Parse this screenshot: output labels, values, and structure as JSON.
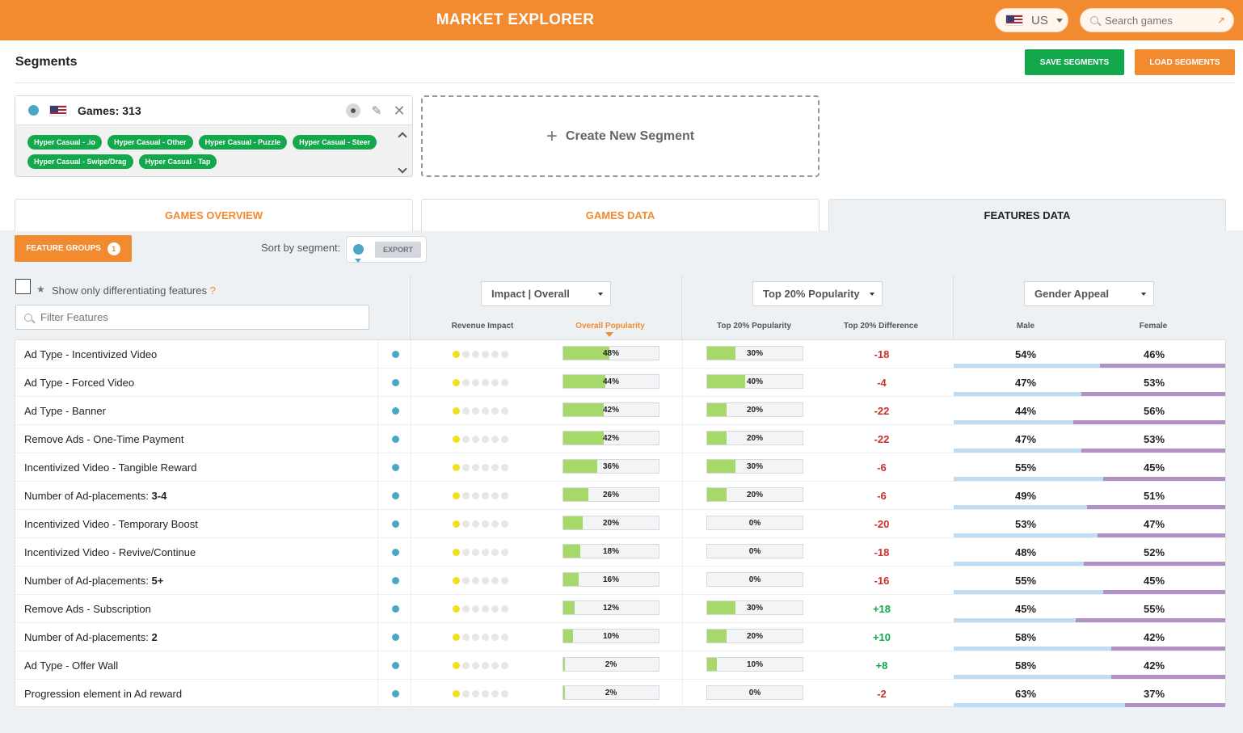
{
  "header": {
    "title": "MARKET EXPLORER",
    "country": "US",
    "search_placeholder": "Search games"
  },
  "segments": {
    "title": "Segments",
    "save_label": "SAVE SEGMENTS",
    "load_label": "LOAD SEGMENTS",
    "card": {
      "games_count": "Games: 313",
      "tags": [
        "Hyper Casual - .io",
        "Hyper Casual - Other",
        "Hyper Casual - Puzzle",
        "Hyper Casual - Steer",
        "Hyper Casual - Swipe/Drag",
        "Hyper Casual - Tap"
      ]
    },
    "create_label": "Create New Segment"
  },
  "tabs": [
    "GAMES OVERVIEW",
    "GAMES DATA",
    "FEATURES DATA"
  ],
  "toolbar": {
    "feature_groups_label": "FEATURE GROUPS",
    "feature_groups_count": "1",
    "sort_label": "Sort by segment:",
    "export_label": "EXPORT",
    "diff_label": "Show only differentiating features",
    "diff_help": "?",
    "filter_placeholder": "Filter Features"
  },
  "columns": {
    "group1": "Impact | Overall",
    "group2": "Top 20% Popularity",
    "group3": "Gender Appeal",
    "revenue_impact": "Revenue Impact",
    "overall_popularity": "Overall Popularity",
    "top20_popularity": "Top 20% Popularity",
    "top20_difference": "Top 20% Difference",
    "male": "Male",
    "female": "Female"
  },
  "colors": {
    "accent": "#f28a30",
    "green": "#12a84b",
    "segment_dot": "#4aa8c6",
    "bar_fill": "#a6d96a",
    "negative": "#c9302c"
  },
  "rows": [
    {
      "name": "Ad Type - Incentivized Video",
      "bold": "",
      "impact": 1,
      "overall": 48,
      "overall_label": "48%",
      "top20": 30,
      "top20_label": "30%",
      "diff": "-18",
      "male": "54%",
      "female": "46%",
      "male_frac": 0.54
    },
    {
      "name": "Ad Type - Forced Video",
      "bold": "",
      "impact": 1,
      "overall": 44,
      "overall_label": "44%",
      "top20": 40,
      "top20_label": "40%",
      "diff": "-4",
      "male": "47%",
      "female": "53%",
      "male_frac": 0.47
    },
    {
      "name": "Ad Type - Banner",
      "bold": "",
      "impact": 1,
      "overall": 42,
      "overall_label": "42%",
      "top20": 20,
      "top20_label": "20%",
      "diff": "-22",
      "male": "44%",
      "female": "56%",
      "male_frac": 0.44
    },
    {
      "name": "Remove Ads - One-Time Payment",
      "bold": "",
      "impact": 1,
      "overall": 42,
      "overall_label": "42%",
      "top20": 20,
      "top20_label": "20%",
      "diff": "-22",
      "male": "47%",
      "female": "53%",
      "male_frac": 0.47
    },
    {
      "name": "Incentivized Video - Tangible Reward",
      "bold": "",
      "impact": 1,
      "overall": 36,
      "overall_label": "36%",
      "top20": 30,
      "top20_label": "30%",
      "diff": "-6",
      "male": "55%",
      "female": "45%",
      "male_frac": 0.55
    },
    {
      "name": "Number of Ad-placements: ",
      "bold": "3-4",
      "impact": 1,
      "overall": 26,
      "overall_label": "26%",
      "top20": 20,
      "top20_label": "20%",
      "diff": "-6",
      "male": "49%",
      "female": "51%",
      "male_frac": 0.49
    },
    {
      "name": "Incentivized Video - Temporary Boost",
      "bold": "",
      "impact": 1,
      "overall": 20,
      "overall_label": "20%",
      "top20": 0,
      "top20_label": "0%",
      "diff": "-20",
      "male": "53%",
      "female": "47%",
      "male_frac": 0.53
    },
    {
      "name": "Incentivized Video - Revive/Continue",
      "bold": "",
      "impact": 1,
      "overall": 18,
      "overall_label": "18%",
      "top20": 0,
      "top20_label": "0%",
      "diff": "-18",
      "male": "48%",
      "female": "52%",
      "male_frac": 0.48
    },
    {
      "name": "Number of Ad-placements: ",
      "bold": "5+",
      "impact": 1,
      "overall": 16,
      "overall_label": "16%",
      "top20": 0,
      "top20_label": "0%",
      "diff": "-16",
      "male": "55%",
      "female": "45%",
      "male_frac": 0.55
    },
    {
      "name": "Remove Ads - Subscription",
      "bold": "",
      "impact": 1,
      "overall": 12,
      "overall_label": "12%",
      "top20": 30,
      "top20_label": "30%",
      "diff": "+18",
      "male": "45%",
      "female": "55%",
      "male_frac": 0.45
    },
    {
      "name": "Number of Ad-placements: ",
      "bold": "2",
      "impact": 1,
      "overall": 10,
      "overall_label": "10%",
      "top20": 20,
      "top20_label": "20%",
      "diff": "+10",
      "male": "58%",
      "female": "42%",
      "male_frac": 0.58
    },
    {
      "name": "Ad Type - Offer Wall",
      "bold": "",
      "impact": 1,
      "overall": 2,
      "overall_label": "2%",
      "top20": 10,
      "top20_label": "10%",
      "diff": "+8",
      "male": "58%",
      "female": "42%",
      "male_frac": 0.58
    },
    {
      "name": "Progression element in Ad reward",
      "bold": "",
      "impact": 1,
      "overall": 2,
      "overall_label": "2%",
      "top20": 0,
      "top20_label": "0%",
      "diff": "-2",
      "male": "63%",
      "female": "37%",
      "male_frac": 0.63
    }
  ]
}
